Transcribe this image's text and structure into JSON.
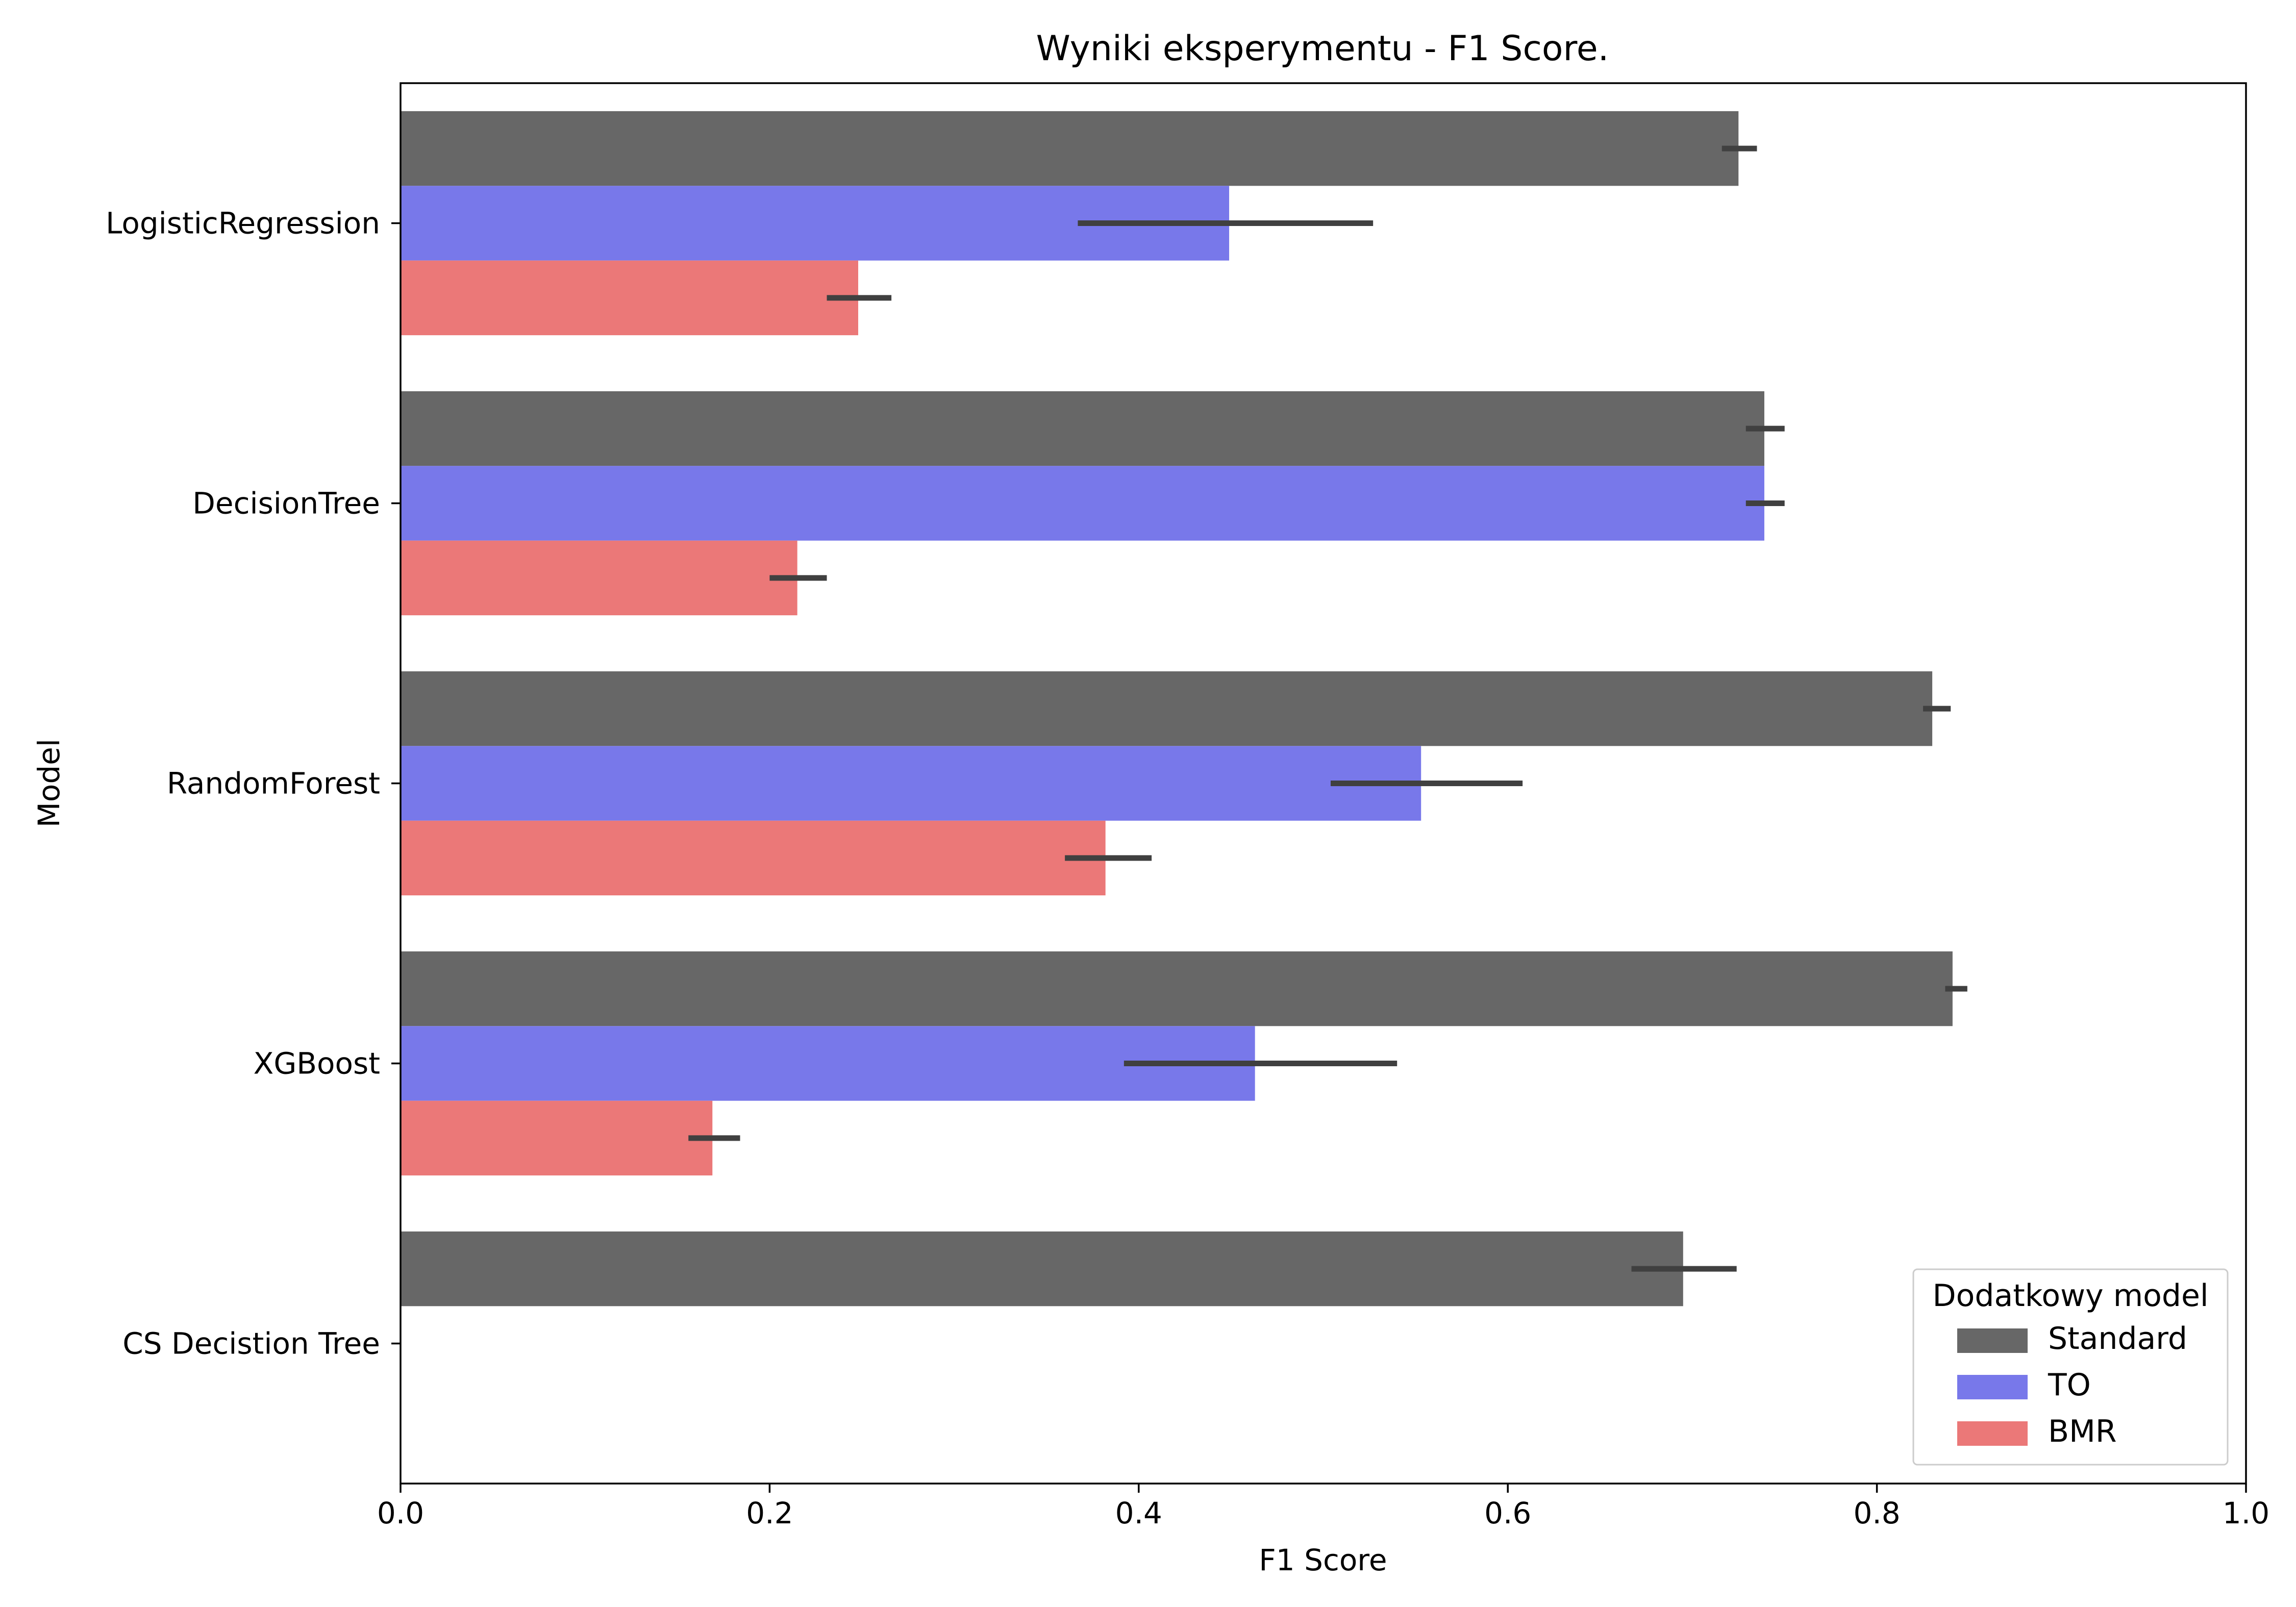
{
  "chart_data": {
    "type": "bar",
    "orientation": "horizontal",
    "title": "Wyniki eksperymentu - F1 Score.",
    "xlabel": "F1 Score",
    "ylabel": "Model",
    "xlim": [
      0,
      1.0
    ],
    "xticks": [
      "0.0",
      "0.2",
      "0.4",
      "0.6",
      "0.8",
      "1.0"
    ],
    "grid": false,
    "legend": {
      "title": "Dodatkowy model",
      "placement": "bottom-right"
    },
    "categories": [
      "LogisticRegression",
      "DecisionTree",
      "RandomForest",
      "XGBoost",
      "CS Decistion Tree"
    ],
    "series": [
      {
        "name": "Standard",
        "color": "#676767",
        "values": [
          0.725,
          0.739,
          0.83,
          0.841,
          0.695
        ],
        "error_low": [
          0.716,
          0.729,
          0.825,
          0.837,
          0.667
        ],
        "error_high": [
          0.735,
          0.75,
          0.84,
          0.849,
          0.724
        ]
      },
      {
        "name": "TO",
        "color": "#7878ea",
        "values": [
          0.449,
          0.739,
          0.553,
          0.463,
          null
        ],
        "error_low": [
          0.367,
          0.729,
          0.504,
          0.392,
          null
        ],
        "error_high": [
          0.527,
          0.75,
          0.608,
          0.54,
          null
        ]
      },
      {
        "name": "BMR",
        "color": "#eb7878",
        "values": [
          0.248,
          0.215,
          0.382,
          0.169,
          null
        ],
        "error_low": [
          0.231,
          0.2,
          0.36,
          0.156,
          null
        ],
        "error_high": [
          0.266,
          0.231,
          0.407,
          0.184,
          null
        ]
      }
    ],
    "error_bar_color": "#404040"
  }
}
